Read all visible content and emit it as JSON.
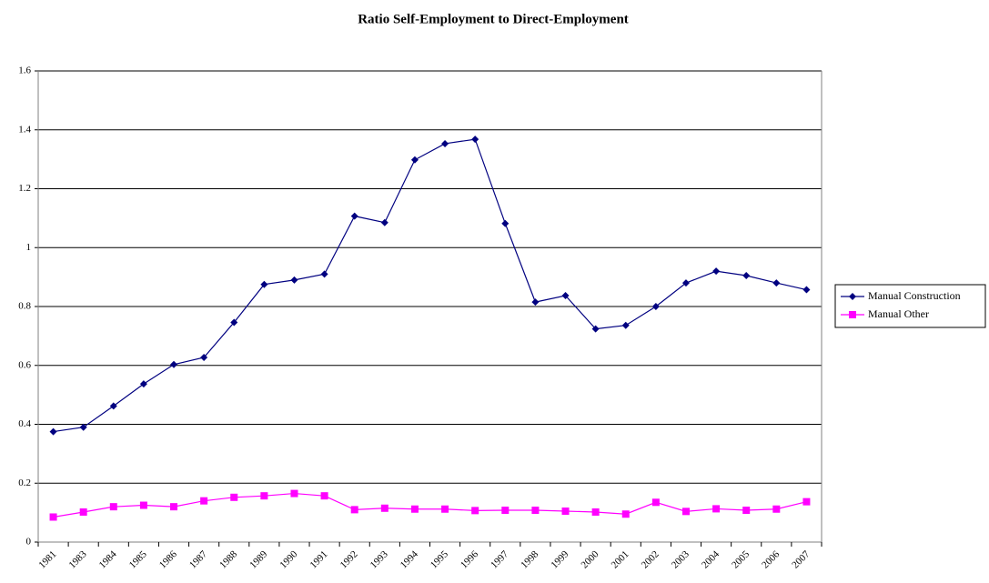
{
  "chart_data": {
    "type": "line",
    "title": "Ratio Self-Employment to Direct-Employment",
    "categories": [
      "1981",
      "1983",
      "1984",
      "1985",
      "1986",
      "1987",
      "1988",
      "1989",
      "1990",
      "1991",
      "1992",
      "1993",
      "1994",
      "1995",
      "1996",
      "1997",
      "1998",
      "1999",
      "2000",
      "2001",
      "2002",
      "2003",
      "2004",
      "2005",
      "2006",
      "2007"
    ],
    "series": [
      {
        "name": "Manual Construction",
        "color": "#000080",
        "marker": "diamond",
        "values": [
          0.375,
          0.39,
          0.462,
          0.537,
          0.603,
          0.627,
          0.746,
          0.875,
          0.89,
          0.91,
          1.107,
          1.085,
          1.298,
          1.353,
          1.368,
          1.082,
          0.815,
          0.837,
          0.724,
          0.736,
          0.8,
          0.88,
          0.92,
          0.905,
          0.88,
          0.857
        ]
      },
      {
        "name": "Manual Other",
        "color": "#ff00ff",
        "marker": "square",
        "values": [
          0.085,
          0.102,
          0.12,
          0.125,
          0.12,
          0.14,
          0.152,
          0.157,
          0.165,
          0.157,
          0.11,
          0.115,
          0.112,
          0.112,
          0.107,
          0.108,
          0.108,
          0.105,
          0.102,
          0.095,
          0.135,
          0.104,
          0.113,
          0.108,
          0.112,
          0.137
        ]
      }
    ],
    "ylim": [
      0,
      1.6
    ],
    "yticks": [
      0,
      0.2,
      0.4,
      0.6,
      0.8,
      1,
      1.2,
      1.4,
      1.6
    ],
    "grid": true,
    "legend": "right"
  }
}
